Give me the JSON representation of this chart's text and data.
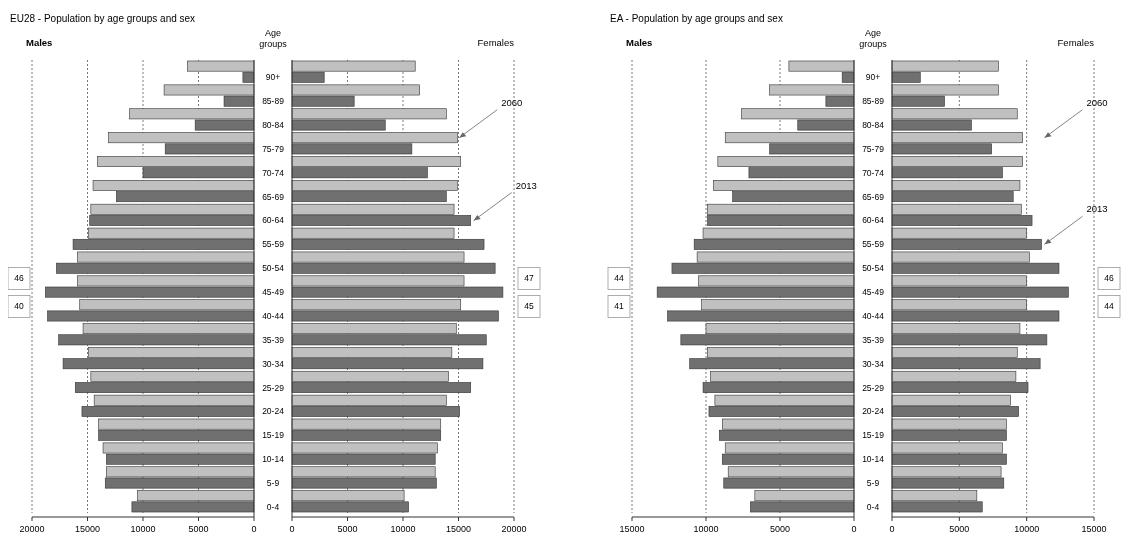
{
  "chart_data": [
    {
      "type": "bar",
      "orientation": "horizontal",
      "title": "EU28 - Population by age groups and sex",
      "subtitle": "Males",
      "categories": [
        null,
        null,
        null,
        null,
        null,
        null,
        null,
        null,
        null,
        null,
        null,
        null,
        null,
        null,
        null,
        null,
        null,
        null,
        null
      ],
      "series": [
        {
          "color": "#c0c0c0",
          "values": [
            6000,
            8100,
            11200,
            13100,
            14100,
            14500,
            14700,
            14900,
            15900,
            15900,
            15700,
            15400,
            14900,
            14700,
            14400,
            14000,
            13600,
            13300,
            10500
          ]
        },
        {
          "color": "#707070",
          "values": [
            1000,
            2700,
            5300,
            8000,
            10000,
            12400,
            14800,
            16300,
            17800,
            18800,
            18600,
            17600,
            17200,
            16100,
            15500,
            14000,
            13300,
            13400,
            11000
          ]
        }
      ],
      "xlim": [
        20000,
        0
      ],
      "xticks": [
        20000,
        15000,
        10000,
        5000,
        0
      ],
      "grid": "x",
      "tick_labels": "x",
      "annotations": [
        "46",
        "40"
      ]
    },
    {
      "type": "bar",
      "orientation": "horizontal",
      "title": "Females",
      "ylabel": "Age groups",
      "categories": [
        "90+",
        "85-89",
        "80-84",
        "75-79",
        "70-74",
        "65-69",
        "60-64",
        "55-59",
        "50-54",
        "45-49",
        "40-44",
        "35-39",
        "30-34",
        "25-29",
        "20-24",
        "15-19",
        "10-14",
        "5-9",
        "0-4"
      ],
      "series": [
        {
          "color": "#c0c0c0",
          "values": [
            11100,
            11500,
            13900,
            14900,
            15200,
            14900,
            14600,
            14600,
            15500,
            15500,
            15200,
            14800,
            14400,
            14100,
            13900,
            13400,
            13100,
            12900,
            10100
          ]
        },
        {
          "color": "#707070",
          "values": [
            2900,
            5600,
            8400,
            10800,
            12200,
            13900,
            16100,
            17300,
            18300,
            19000,
            18600,
            17500,
            17200,
            16100,
            15100,
            13400,
            12900,
            13000,
            10500
          ]
        }
      ],
      "xlim": [
        0,
        20000
      ],
      "xticks": [
        0,
        5000,
        10000,
        15000,
        20000
      ],
      "grid": "x",
      "annotations": [
        "2060",
        {
          "text": "2013",
          "x": 16100,
          "y": "60-64"
        },
        "47",
        "45"
      ]
    },
    {
      "type": "bar",
      "orientation": "horizontal",
      "title": "EA - Population by age groups and sex",
      "subtitle": "Males",
      "categories": [
        null,
        null,
        null,
        null,
        null,
        null,
        null,
        null,
        null,
        null,
        null,
        null,
        null,
        null,
        null,
        null,
        null,
        null,
        null
      ],
      "series": [
        {
          "color": "#c0c0c0",
          "values": [
            4400,
            5700,
            7600,
            8700,
            9200,
            9500,
            9900,
            10200,
            10600,
            10500,
            10300,
            10000,
            9900,
            9700,
            9400,
            8900,
            8700,
            8500,
            6700
          ]
        },
        {
          "color": "#707070",
          "values": [
            800,
            1900,
            3800,
            5700,
            7100,
            8200,
            9900,
            10800,
            12300,
            13300,
            12600,
            11700,
            11100,
            10200,
            9800,
            9100,
            8900,
            8800,
            7000
          ]
        }
      ],
      "xlim": [
        15000,
        0
      ],
      "xticks": [
        15000,
        10000,
        5000,
        0
      ],
      "grid": "x",
      "tick_labels": "x",
      "annotations": [
        "44",
        "41"
      ]
    },
    {
      "type": "bar",
      "orientation": "horizontal",
      "title": "Females",
      "ylabel": "Age groups",
      "categories": [
        "90+",
        "85-89",
        "80-84",
        "75-79",
        "70-74",
        "65-69",
        "60-64",
        "55-59",
        "50-54",
        "45-49",
        "40-44",
        "35-39",
        "30-34",
        "25-29",
        "20-24",
        "15-19",
        "10-14",
        "5-9",
        "0-4"
      ],
      "series": [
        {
          "color": "#c0c0c0",
          "values": [
            7900,
            7900,
            9300,
            9700,
            9700,
            9500,
            9600,
            10000,
            10200,
            10000,
            10000,
            9500,
            9300,
            9200,
            8800,
            8500,
            8200,
            8100,
            6300
          ]
        },
        {
          "color": "#707070",
          "values": [
            2100,
            3900,
            5900,
            7400,
            8200,
            9000,
            10400,
            11100,
            12400,
            13100,
            12400,
            11500,
            11000,
            10100,
            9400,
            8500,
            8500,
            8300,
            6700
          ]
        }
      ],
      "xlim": [
        0,
        15000
      ],
      "xticks": [
        0,
        5000,
        10000,
        15000
      ],
      "grid": "x",
      "annotations": [
        "2060",
        {
          "text": "2013",
          "x": 11100,
          "y": "55-59"
        },
        "46",
        "44"
      ]
    }
  ]
}
